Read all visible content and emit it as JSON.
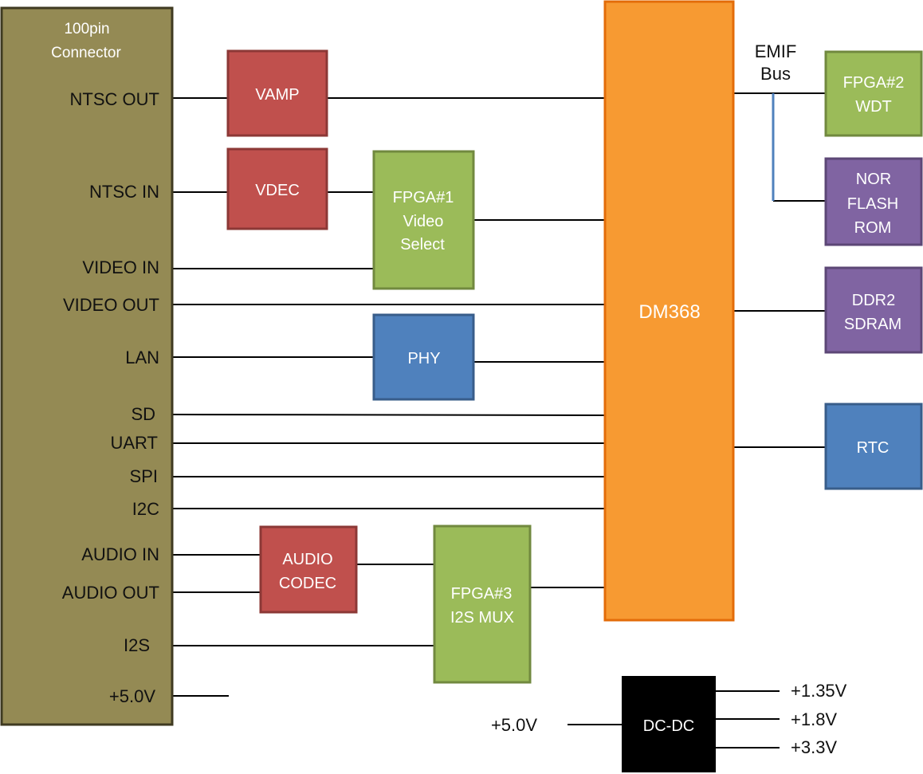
{
  "connector": {
    "title_line1": "100pin",
    "title_line2": "Connector",
    "pins": {
      "ntsc_out": "NTSC OUT",
      "ntsc_in": "NTSC IN",
      "video_in": "VIDEO IN",
      "video_out": "VIDEO OUT",
      "lan": "LAN",
      "sd": "SD",
      "uart": "UART",
      "spi": "SPI",
      "i2c": "I2C",
      "audio_in": "AUDIO IN",
      "audio_out": "AUDIO OUT",
      "i2s": "I2S",
      "power": "+5.0V"
    }
  },
  "blocks": {
    "vamp": [
      "VAMP"
    ],
    "vdec": [
      "VDEC"
    ],
    "fpga1": [
      "FPGA#1",
      "Video",
      "Select"
    ],
    "phy": [
      "PHY"
    ],
    "audio_codec": [
      "AUDIO",
      "CODEC"
    ],
    "fpga3": [
      "FPGA#3",
      "I2S MUX"
    ],
    "dm368": [
      "DM368"
    ],
    "fpga2": [
      "FPGA#2",
      "WDT"
    ],
    "nor_flash": [
      "NOR",
      "FLASH",
      "ROM"
    ],
    "ddr2": [
      "DDR2",
      "SDRAM"
    ],
    "rtc": [
      "RTC"
    ],
    "dcdc": [
      "DC-DC"
    ]
  },
  "bus": {
    "line1": "EMIF",
    "line2": "Bus"
  },
  "power": {
    "input": "+5.0V",
    "outputs": {
      "v135": "+1.35V",
      "v18": "+1.8V",
      "v33": "+3.3V"
    }
  },
  "colors": {
    "connector_fill": "#948a54",
    "connector_border": "#3f3a21",
    "red_fill": "#c0504d",
    "red_border": "#8c3836",
    "green_fill": "#9bbb59",
    "green_border": "#71893f",
    "blue_fill": "#4f81bd",
    "blue_border": "#385d8a",
    "purple_fill": "#8064a2",
    "purple_border": "#5c4776",
    "orange_fill": "#f79a32",
    "orange_border": "#e36c09",
    "dcdc_fill": "#000000",
    "bus_line": "#4f81bd",
    "wire": "#000000"
  }
}
